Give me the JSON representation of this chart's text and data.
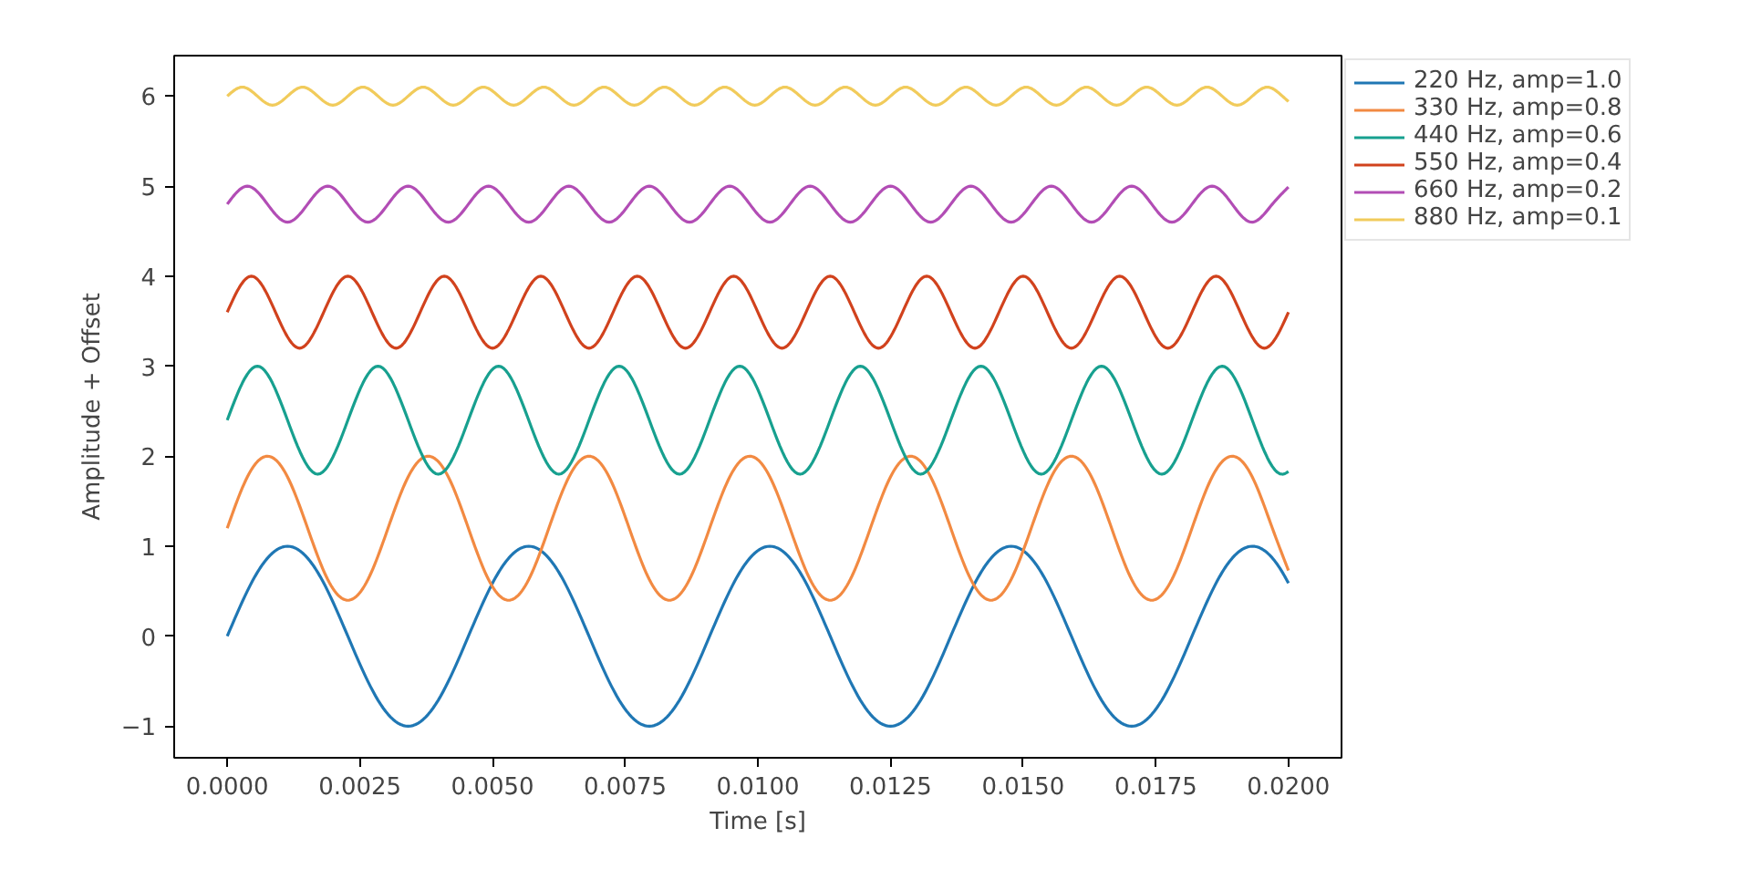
{
  "chart_data": {
    "type": "line",
    "xlabel": "Time [s]",
    "ylabel": "Amplitude + Offset",
    "xlim": [
      -0.001,
      0.021
    ],
    "ylim": [
      -1.35,
      6.45
    ],
    "xticks": [
      {
        "value": 0,
        "label": "0.0000"
      },
      {
        "value": 0.0025,
        "label": "0.0025"
      },
      {
        "value": 0.005,
        "label": "0.0050"
      },
      {
        "value": 0.0075,
        "label": "0.0075"
      },
      {
        "value": 0.01,
        "label": "0.0100"
      },
      {
        "value": 0.0125,
        "label": "0.0125"
      },
      {
        "value": 0.015,
        "label": "0.0150"
      },
      {
        "value": 0.0175,
        "label": "0.0175"
      },
      {
        "value": 0.02,
        "label": "0.0200"
      }
    ],
    "yticks": [
      {
        "value": -1,
        "label": "−1"
      },
      0,
      1,
      2,
      3,
      4,
      5,
      6
    ],
    "legend": "right",
    "grid": false,
    "series": [
      {
        "name": "220 Hz, amp=1.0",
        "color": "#1f77b4",
        "x": [
          0,
          0.000568,
          0.001136,
          0.001705,
          0.002273,
          0.002841,
          0.003409,
          0.003977,
          0.004545,
          0.005114,
          0.005682,
          0.00625,
          0.006818,
          0.007386,
          0.007955,
          0.008523,
          0.009091,
          0.009659,
          0.010227,
          0.010795,
          0.011364,
          0.011932,
          0.0125,
          0.013068,
          0.013636,
          0.014205,
          0.014773,
          0.015341,
          0.015909,
          0.016477,
          0.017045,
          0.017614,
          0.018182,
          0.01875,
          0.019318,
          0.019886,
          0.02
        ],
        "values": [
          0,
          0.71,
          1,
          0.71,
          0,
          -0.71,
          -1,
          -0.71,
          0,
          0.71,
          1,
          0.71,
          0,
          -0.71,
          -1,
          -0.71,
          0,
          0.71,
          1,
          0.71,
          0,
          -0.71,
          -1,
          -0.71,
          0,
          0.71,
          1,
          0.71,
          0,
          -0.71,
          -1,
          -0.71,
          0,
          0.71,
          1,
          0.71,
          0.59
        ]
      },
      {
        "name": "330 Hz, amp=0.8",
        "color": "#f28a42",
        "x": [
          0,
          0.000379,
          0.000758,
          0.001136,
          0.001515,
          0.001894,
          0.002273,
          0.002652,
          0.00303,
          0.003409,
          0.003788,
          0.004167,
          0.004545,
          0.004924,
          0.005303,
          0.005682,
          0.006061,
          0.006439,
          0.006818,
          0.007197,
          0.007576,
          0.007955,
          0.008333,
          0.008712,
          0.009091,
          0.00947,
          0.009848,
          0.010227,
          0.010606,
          0.010985,
          0.011364,
          0.011742,
          0.012121,
          0.0125,
          0.012879,
          0.013258,
          0.013636,
          0.014015,
          0.014394,
          0.014773,
          0.015152,
          0.01553,
          0.015909,
          0.016288,
          0.016667,
          0.017045,
          0.017424,
          0.017803,
          0.018182,
          0.018561,
          0.018939,
          0.019318,
          0.019697,
          0.02
        ],
        "values": [
          1.2,
          1.77,
          2.0,
          1.77,
          1.2,
          0.63,
          0.4,
          0.63,
          1.2,
          1.77,
          2.0,
          1.77,
          1.2,
          0.63,
          0.4,
          0.63,
          1.2,
          1.77,
          2.0,
          1.77,
          1.2,
          0.63,
          0.4,
          0.63,
          1.2,
          1.77,
          2.0,
          1.77,
          1.2,
          0.63,
          0.4,
          0.63,
          1.2,
          1.77,
          2.0,
          1.77,
          1.2,
          0.63,
          0.4,
          0.63,
          1.2,
          1.77,
          2.0,
          1.77,
          1.2,
          0.63,
          0.4,
          0.63,
          1.2,
          1.77,
          2.0,
          1.77,
          1.2,
          0.73
        ]
      },
      {
        "name": "440 Hz, amp=0.6",
        "color": "#17a08f",
        "x": [
          0,
          0.000568,
          0.001136,
          0.001705,
          0.002273,
          0.002841,
          0.003409,
          0.003977,
          0.004545,
          0.005114,
          0.005682,
          0.00625,
          0.006818,
          0.007386,
          0.007955,
          0.008523,
          0.009091,
          0.009659,
          0.010227,
          0.010795,
          0.011364,
          0.011932,
          0.0125,
          0.013068,
          0.013636,
          0.014205,
          0.014773,
          0.015341,
          0.015909,
          0.016477,
          0.017045,
          0.017614,
          0.018182,
          0.01875,
          0.019318,
          0.019886,
          0.02
        ],
        "values": [
          2.4,
          3.0,
          2.4,
          1.8,
          2.4,
          3.0,
          2.4,
          1.8,
          2.4,
          3.0,
          2.4,
          1.8,
          2.4,
          3.0,
          2.4,
          1.8,
          2.4,
          3.0,
          2.4,
          1.8,
          2.4,
          3.0,
          2.4,
          1.8,
          2.4,
          3.0,
          2.4,
          1.8,
          2.4,
          3.0,
          2.4,
          1.8,
          2.4,
          3.0,
          2.4,
          1.8,
          1.83
        ]
      },
      {
        "name": "550 Hz, amp=0.4",
        "color": "#d1421d",
        "x": [
          0,
          0.000455,
          0.000909,
          0.001364,
          0.001818,
          0.002273,
          0.002727,
          0.003182,
          0.003636,
          0.004091,
          0.004545,
          0.005,
          0.005455,
          0.005909,
          0.006364,
          0.006818,
          0.007273,
          0.007727,
          0.008182,
          0.008636,
          0.009091,
          0.009545,
          0.01,
          0.010455,
          0.010909,
          0.011364,
          0.011818,
          0.012273,
          0.012727,
          0.013182,
          0.013636,
          0.014091,
          0.014545,
          0.015,
          0.015455,
          0.015909,
          0.016364,
          0.016818,
          0.017273,
          0.017727,
          0.018182,
          0.018636,
          0.019091,
          0.019545,
          0.02
        ],
        "values": [
          3.6,
          4.0,
          3.6,
          3.2,
          3.6,
          4.0,
          3.6,
          3.2,
          3.6,
          4.0,
          3.6,
          3.2,
          3.6,
          4.0,
          3.6,
          3.2,
          3.6,
          4.0,
          3.6,
          3.2,
          3.6,
          4.0,
          3.6,
          3.2,
          3.6,
          4.0,
          3.6,
          3.2,
          3.6,
          4.0,
          3.6,
          3.2,
          3.6,
          4.0,
          3.6,
          3.2,
          3.6,
          4.0,
          3.6,
          3.2,
          3.6,
          4.0,
          3.6,
          3.2,
          3.6
        ]
      },
      {
        "name": "660 Hz, amp=0.2",
        "color": "#b24db5",
        "x": [
          0,
          0.000379,
          0.000758,
          0.001136,
          0.001515,
          0.001894,
          0.002273,
          0.002652,
          0.00303,
          0.003409,
          0.003788,
          0.004167,
          0.004545,
          0.004924,
          0.005303,
          0.005682,
          0.006061,
          0.006439,
          0.006818,
          0.007197,
          0.007576,
          0.007955,
          0.008333,
          0.008712,
          0.009091,
          0.00947,
          0.009848,
          0.010227,
          0.010606,
          0.010985,
          0.011364,
          0.011742,
          0.012121,
          0.0125,
          0.012879,
          0.013258,
          0.013636,
          0.014015,
          0.014394,
          0.014773,
          0.015152,
          0.01553,
          0.015909,
          0.016288,
          0.016667,
          0.017045,
          0.017424,
          0.017803,
          0.018182,
          0.018561,
          0.018939,
          0.019318,
          0.019697,
          0.02
        ],
        "values": [
          4.8,
          5.0,
          4.8,
          4.6,
          4.8,
          5.0,
          4.8,
          4.6,
          4.8,
          5.0,
          4.8,
          4.6,
          4.8,
          5.0,
          4.8,
          4.6,
          4.8,
          5.0,
          4.8,
          4.6,
          4.8,
          5.0,
          4.8,
          4.6,
          4.8,
          5.0,
          4.8,
          4.6,
          4.8,
          5.0,
          4.8,
          4.6,
          4.8,
          5.0,
          4.8,
          4.6,
          4.8,
          5.0,
          4.8,
          4.6,
          4.8,
          5.0,
          4.8,
          4.6,
          4.8,
          5.0,
          4.8,
          4.6,
          4.8,
          5.0,
          4.8,
          4.6,
          4.8,
          4.99
        ]
      },
      {
        "name": "880 Hz, amp=0.1",
        "color": "#f1cb5b",
        "x": [
          0,
          0.000284,
          0.000568,
          0.000852,
          0.001136,
          0.00142,
          0.001705,
          0.001989,
          0.002273,
          0.002557,
          0.002841,
          0.003125,
          0.003409,
          0.003693,
          0.003977,
          0.004261,
          0.004545,
          0.00483,
          0.005114,
          0.005398,
          0.005682,
          0.005966,
          0.00625,
          0.006534,
          0.006818,
          0.007102,
          0.007386,
          0.00767,
          0.007955,
          0.008239,
          0.008523,
          0.008807,
          0.009091,
          0.009375,
          0.009659,
          0.009943,
          0.010227,
          0.010511,
          0.010795,
          0.01108,
          0.011364,
          0.011648,
          0.011932,
          0.012216,
          0.0125,
          0.012784,
          0.013068,
          0.013352,
          0.013636,
          0.01392,
          0.014205,
          0.014489,
          0.014773,
          0.015057,
          0.015341,
          0.015625,
          0.015909,
          0.016193,
          0.016477,
          0.016761,
          0.017045,
          0.01733,
          0.017614,
          0.017898,
          0.018182,
          0.018466,
          0.01875,
          0.019034,
          0.019318,
          0.019602,
          0.019886,
          0.02
        ],
        "values": [
          6.0,
          6.1,
          6.0,
          5.9,
          6.0,
          6.1,
          6.0,
          5.9,
          6.0,
          6.1,
          6.0,
          5.9,
          6.0,
          6.1,
          6.0,
          5.9,
          6.0,
          6.1,
          6.0,
          5.9,
          6.0,
          6.1,
          6.0,
          5.9,
          6.0,
          6.1,
          6.0,
          5.9,
          6.0,
          6.1,
          6.0,
          5.9,
          6.0,
          6.1,
          6.0,
          5.9,
          6.0,
          6.1,
          6.0,
          5.9,
          6.0,
          6.1,
          6.0,
          5.9,
          6.0,
          6.1,
          6.0,
          5.9,
          6.0,
          6.1,
          6.0,
          5.9,
          6.0,
          6.1,
          6.0,
          5.9,
          6.0,
          6.1,
          6.0,
          5.9,
          6.0,
          6.1,
          6.0,
          5.9,
          6.0,
          6.1,
          6.0,
          5.9,
          6.0,
          6.1,
          6.0,
          5.94
        ]
      }
    ]
  }
}
